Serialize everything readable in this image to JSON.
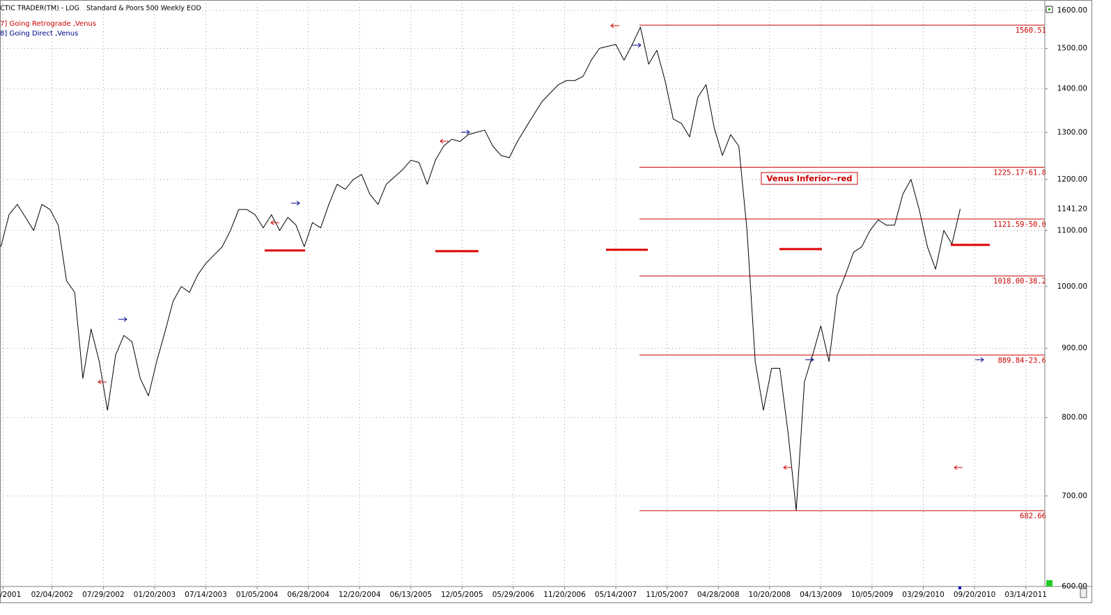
{
  "chart_data": {
    "type": "line",
    "title": "CTIC TRADER(TM) - LOG",
    "subtitle": "Standard & Poors 500 Weekly EOD",
    "legend": [
      {
        "label": "7] Going Retrograde ,Venus",
        "color": "#cc0000"
      },
      {
        "label": "8] Going Direct ,Venus",
        "color": "#00008b"
      }
    ],
    "annotation": "Venus Inferior--red",
    "log_scale": true,
    "grid": true,
    "xlim": [
      "2001-08-10",
      "2011-05-18"
    ],
    "ylim": [
      600,
      1600
    ],
    "xticks": [
      {
        "value": "2001-08-20",
        "label": "/2001"
      },
      {
        "value": "2002-02-04",
        "label": "02/04/2002"
      },
      {
        "value": "2002-07-29",
        "label": "07/29/2002"
      },
      {
        "value": "2003-01-20",
        "label": "01/20/2003"
      },
      {
        "value": "2003-07-14",
        "label": "07/14/2003"
      },
      {
        "value": "2004-01-05",
        "label": "01/05/2004"
      },
      {
        "value": "2004-06-28",
        "label": "06/28/2004"
      },
      {
        "value": "2004-12-20",
        "label": "12/20/2004"
      },
      {
        "value": "2005-06-13",
        "label": "06/13/2005"
      },
      {
        "value": "2005-12-05",
        "label": "12/05/2005"
      },
      {
        "value": "2006-05-29",
        "label": "05/29/2006"
      },
      {
        "value": "2006-11-20",
        "label": "11/20/2006"
      },
      {
        "value": "2007-05-14",
        "label": "05/14/2007"
      },
      {
        "value": "2007-11-05",
        "label": "11/05/2007"
      },
      {
        "value": "2008-04-28",
        "label": "04/28/2008"
      },
      {
        "value": "2008-10-20",
        "label": "10/20/2008"
      },
      {
        "value": "2009-04-13",
        "label": "04/13/2009"
      },
      {
        "value": "2009-10-05",
        "label": "10/05/2009"
      },
      {
        "value": "2010-03-29",
        "label": "03/29/2010"
      },
      {
        "value": "2010-09-20",
        "label": "09/20/2010"
      },
      {
        "value": "2011-03-14",
        "label": "03/14/2011"
      }
    ],
    "yticks": [
      {
        "value": 600,
        "label": "600.00"
      },
      {
        "value": 700,
        "label": "700.00"
      },
      {
        "value": 800,
        "label": "800.00"
      },
      {
        "value": 900,
        "label": "900.00"
      },
      {
        "value": 1000,
        "label": "1000.00"
      },
      {
        "value": 1100,
        "label": "1100.00"
      },
      {
        "value": 1200,
        "label": "1200.00"
      },
      {
        "value": 1300,
        "label": "1300.00"
      },
      {
        "value": 1400,
        "label": "1400.00"
      },
      {
        "value": 1500,
        "label": "1500.00"
      },
      {
        "value": 1600,
        "label": "1600.00"
      }
    ],
    "levels": [
      {
        "value": 1560.51,
        "label": "1560.51"
      },
      {
        "value": 1225.17,
        "label": "1225.17-61.8"
      },
      {
        "value": 1121.59,
        "label": "1121.59-50.0"
      },
      {
        "value": 1018.0,
        "label": "1018.00-38.2"
      },
      {
        "value": 889.84,
        "label": "889.84-23.6"
      },
      {
        "value": 682.66,
        "label": "682.66"
      }
    ],
    "last_price": {
      "value": 1141.2,
      "label": "1141.20"
    },
    "x": [
      "2001-08-13",
      "2001-09-10",
      "2001-10-08",
      "2001-11-05",
      "2001-12-03",
      "2001-12-31",
      "2002-01-28",
      "2002-02-25",
      "2002-03-25",
      "2002-04-22",
      "2002-05-20",
      "2002-06-17",
      "2002-07-15",
      "2002-08-12",
      "2002-09-09",
      "2002-10-07",
      "2002-11-04",
      "2002-12-02",
      "2002-12-30",
      "2003-01-27",
      "2003-02-24",
      "2003-03-24",
      "2003-04-21",
      "2003-05-19",
      "2003-06-16",
      "2003-07-14",
      "2003-08-11",
      "2003-09-08",
      "2003-10-06",
      "2003-11-03",
      "2003-12-01",
      "2003-12-29",
      "2004-01-26",
      "2004-02-23",
      "2004-03-22",
      "2004-04-19",
      "2004-05-17",
      "2004-06-14",
      "2004-07-12",
      "2004-08-09",
      "2004-09-06",
      "2004-10-04",
      "2004-11-01",
      "2004-11-29",
      "2004-12-27",
      "2005-01-24",
      "2005-02-21",
      "2005-03-21",
      "2005-04-18",
      "2005-05-16",
      "2005-06-13",
      "2005-07-11",
      "2005-08-08",
      "2005-09-05",
      "2005-10-03",
      "2005-10-31",
      "2005-11-28",
      "2005-12-26",
      "2006-01-23",
      "2006-02-20",
      "2006-03-20",
      "2006-04-17",
      "2006-05-15",
      "2006-06-12",
      "2006-07-10",
      "2006-08-07",
      "2006-09-04",
      "2006-10-02",
      "2006-10-30",
      "2006-11-27",
      "2006-12-25",
      "2007-01-22",
      "2007-02-19",
      "2007-03-19",
      "2007-04-16",
      "2007-05-14",
      "2007-06-11",
      "2007-07-09",
      "2007-08-06",
      "2007-09-03",
      "2007-10-01",
      "2007-10-29",
      "2007-11-26",
      "2007-12-24",
      "2008-01-21",
      "2008-02-18",
      "2008-03-17",
      "2008-04-14",
      "2008-05-12",
      "2008-06-09",
      "2008-07-07",
      "2008-08-04",
      "2008-09-01",
      "2008-09-29",
      "2008-10-27",
      "2008-11-24",
      "2008-12-22",
      "2009-01-19",
      "2009-02-16",
      "2009-03-16",
      "2009-04-13",
      "2009-05-11",
      "2009-06-08",
      "2009-07-06",
      "2009-08-03",
      "2009-08-31",
      "2009-09-28",
      "2009-10-26",
      "2009-11-23",
      "2009-12-21",
      "2010-01-18",
      "2010-02-15",
      "2010-03-15",
      "2010-04-12",
      "2010-05-10",
      "2010-06-07",
      "2010-07-05",
      "2010-08-02"
    ],
    "series": [
      {
        "name": "Standard & Poors 500",
        "color": "#000000",
        "values": [
          1070,
          1130,
          1150,
          1125,
          1100,
          1150,
          1140,
          1110,
          1010,
          990,
          855,
          930,
          880,
          810,
          890,
          920,
          910,
          855,
          830,
          880,
          925,
          975,
          1000,
          990,
          1020,
          1040,
          1055,
          1070,
          1100,
          1140,
          1140,
          1130,
          1105,
          1130,
          1100,
          1125,
          1110,
          1070,
          1115,
          1105,
          1150,
          1190,
          1180,
          1200,
          1210,
          1170,
          1150,
          1190,
          1205,
          1220,
          1240,
          1235,
          1190,
          1240,
          1270,
          1285,
          1280,
          1295,
          1300,
          1305,
          1270,
          1250,
          1245,
          1280,
          1310,
          1340,
          1370,
          1390,
          1410,
          1420,
          1420,
          1430,
          1470,
          1500,
          1505,
          1510,
          1470,
          1510,
          1555,
          1460,
          1495,
          1420,
          1330,
          1320,
          1290,
          1380,
          1410,
          1310,
          1250,
          1295,
          1270,
          1100,
          880,
          810,
          870,
          870,
          780,
          683,
          850,
          890,
          935,
          880,
          985,
          1020,
          1060,
          1070,
          1100,
          1120,
          1110,
          1110,
          1170,
          1200,
          1140,
          1070,
          1030,
          1100,
          1075,
          1141.2
        ]
      }
    ]
  }
}
